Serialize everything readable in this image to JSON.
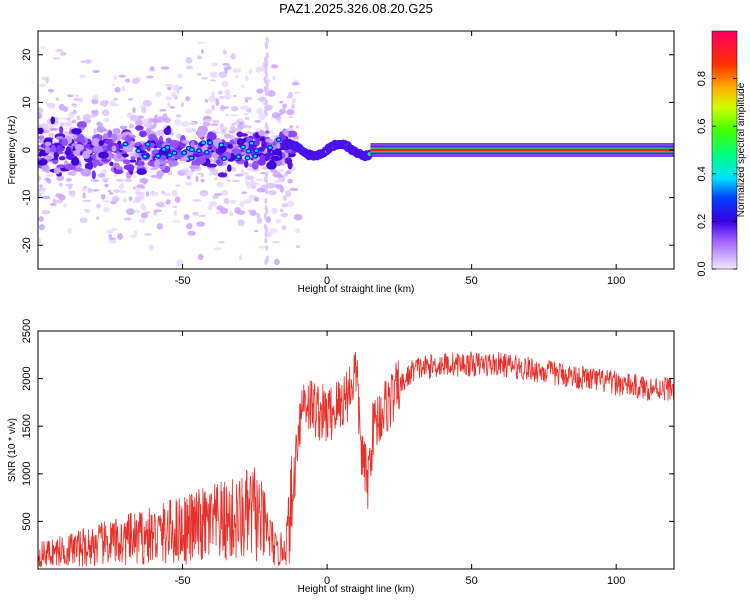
{
  "title": "PAZ1.2025.326.08.20.G25",
  "colors": {
    "snr_line": "#e8302a",
    "background": "#ffffff",
    "axis": "#000000"
  },
  "chart_data": [
    {
      "type": "heatmap",
      "name": "spectrogram",
      "xlabel": "Height of straight line (km)",
      "ylabel": "Frequency (Hz)",
      "xlim": [
        -100,
        120
      ],
      "ylim": [
        -25,
        25
      ],
      "x_ticks": [
        {
          "value": -50,
          "label": "-50"
        },
        {
          "value": 0,
          "label": "0"
        },
        {
          "value": 50,
          "label": "50"
        },
        {
          "value": 100,
          "label": "100"
        }
      ],
      "y_ticks": [
        {
          "value": -20,
          "label": "-20"
        },
        {
          "value": -10,
          "label": "-10"
        },
        {
          "value": 0,
          "label": "0"
        },
        {
          "value": 10,
          "label": "10"
        },
        {
          "value": 20,
          "label": "20"
        }
      ],
      "colorbar": {
        "label": "Normalized spectral amplitude",
        "range": [
          0,
          1
        ],
        "ticks": [
          {
            "value": 0.0,
            "label": "0.0"
          },
          {
            "value": 0.2,
            "label": "0.2"
          },
          {
            "value": 0.4,
            "label": "0.4"
          },
          {
            "value": 0.6,
            "label": "0.6"
          },
          {
            "value": 0.8,
            "label": "0.8"
          }
        ]
      },
      "description_values": {
        "main_line_frequency_hz": 0,
        "main_line_start_km": 15,
        "main_line_end_km": 120,
        "scatter_region_km": [
          -100,
          -15
        ],
        "scatter_frequency_spread_hz": [
          -10,
          10
        ]
      }
    },
    {
      "type": "line",
      "name": "snr",
      "xlabel": "Height of straight line (km)",
      "ylabel": "SNR (10 * v/v)",
      "xlim": [
        -100,
        120
      ],
      "ylim": [
        0,
        2500
      ],
      "x_ticks": [
        {
          "value": -50,
          "label": "-50"
        },
        {
          "value": 0,
          "label": "0"
        },
        {
          "value": 50,
          "label": "50"
        },
        {
          "value": 100,
          "label": "100"
        }
      ],
      "y_ticks": [
        {
          "value": 500,
          "label": "500"
        },
        {
          "value": 1000,
          "label": "1000"
        },
        {
          "value": 1500,
          "label": "1500"
        },
        {
          "value": 2000,
          "label": "2000"
        },
        {
          "value": 2500,
          "label": "2500"
        }
      ],
      "series": [
        {
          "name": "SNR",
          "x": [
            -100,
            -90,
            -80,
            -70,
            -60,
            -50,
            -40,
            -30,
            -25,
            -20,
            -17,
            -14,
            -12,
            -10,
            -8,
            -5,
            0,
            5,
            8,
            10,
            12,
            14,
            16,
            20,
            25,
            30,
            40,
            50,
            60,
            70,
            80,
            90,
            100,
            110,
            120
          ],
          "y": [
            150,
            200,
            250,
            300,
            350,
            420,
            470,
            520,
            600,
            350,
            150,
            300,
            700,
            1500,
            1800,
            1700,
            1600,
            1750,
            1900,
            2100,
            1200,
            900,
            1500,
            1700,
            1900,
            2100,
            2150,
            2150,
            2150,
            2100,
            2050,
            2000,
            1950,
            1900,
            1900
          ]
        }
      ]
    }
  ]
}
